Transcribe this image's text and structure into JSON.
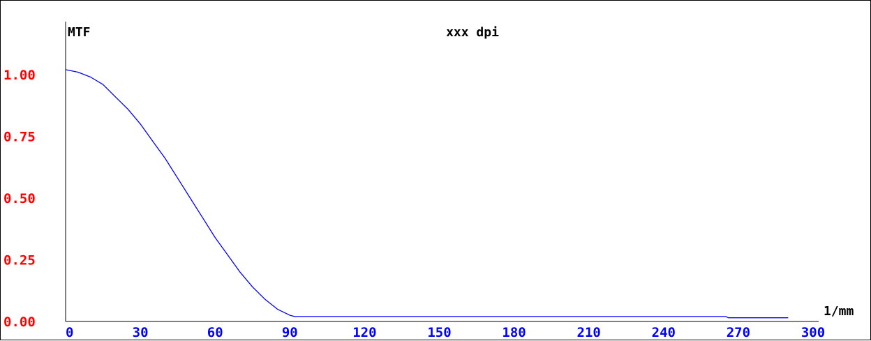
{
  "chart_data": {
    "type": "line",
    "title": "xxx dpi",
    "ylabel": "MTF",
    "xlabel": "1/mm",
    "xlim": [
      0,
      300
    ],
    "ylim": [
      0,
      1.1
    ],
    "x_ticks": [
      "0",
      "30",
      "60",
      "90",
      "120",
      "150",
      "180",
      "210",
      "240",
      "270",
      "300"
    ],
    "y_ticks": [
      "0.00",
      "0.25",
      "0.50",
      "0.75",
      "1.00"
    ],
    "grid": false,
    "colors": {
      "y_tick_labels": "#ff0000",
      "x_tick_labels": "#0000ff",
      "series": "#0000ff",
      "axes": "#000000"
    },
    "series": [
      {
        "x": [
          0,
          5,
          10,
          15,
          20,
          25,
          30,
          35,
          40,
          45,
          50,
          55,
          60,
          65,
          70,
          75,
          80,
          85,
          90,
          92,
          100,
          150,
          200,
          250,
          265,
          266,
          290
        ],
        "y": [
          1.02,
          1.01,
          0.99,
          0.96,
          0.91,
          0.86,
          0.8,
          0.73,
          0.66,
          0.58,
          0.5,
          0.42,
          0.34,
          0.27,
          0.2,
          0.14,
          0.09,
          0.05,
          0.025,
          0.02,
          0.02,
          0.02,
          0.02,
          0.02,
          0.02,
          0.015,
          0.015
        ]
      }
    ]
  }
}
